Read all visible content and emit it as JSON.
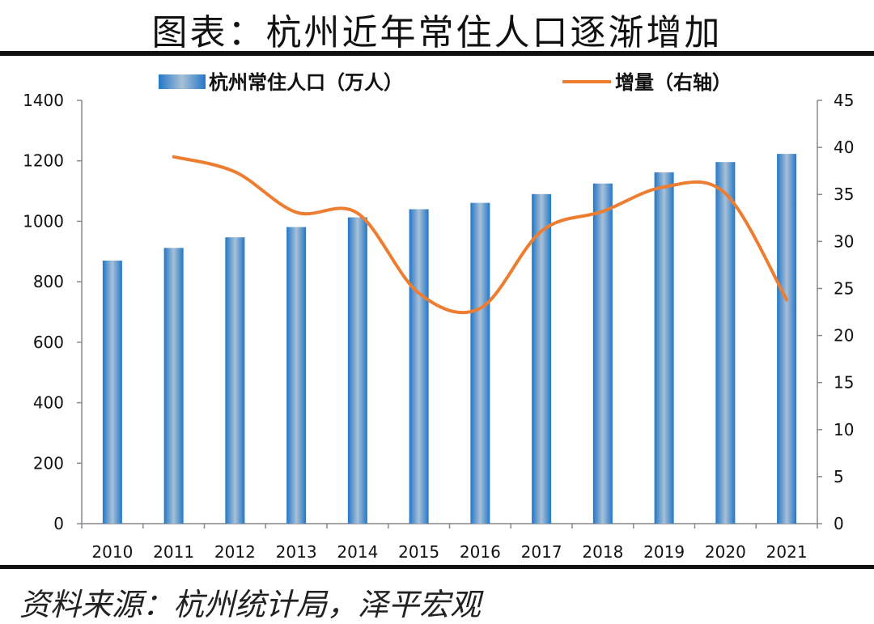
{
  "title": "图表：杭州近年常住人口逐渐增加",
  "source": "资料来源：杭州统计局，泽平宏观",
  "chart_data": {
    "type": "bar+line",
    "categories": [
      "2010",
      "2011",
      "2012",
      "2013",
      "2014",
      "2015",
      "2016",
      "2017",
      "2018",
      "2019",
      "2020",
      "2021"
    ],
    "series": [
      {
        "name": "杭州常住人口（万人）",
        "type": "bar",
        "axis": "left",
        "color": "#2f7fc4",
        "values": [
          870,
          912,
          947,
          981,
          1013,
          1040,
          1061,
          1090,
          1125,
          1162,
          1196,
          1223
        ]
      },
      {
        "name": "增量（右轴）",
        "type": "line",
        "axis": "right",
        "color": "#ed7d31",
        "smooth": true,
        "values": [
          null,
          39.0,
          37.4,
          33.1,
          33.0,
          24.5,
          22.9,
          31.1,
          33.2,
          35.8,
          35.1,
          23.8
        ]
      }
    ],
    "y_left": {
      "lim": [
        0,
        1400
      ],
      "ticks": [
        "0",
        "200",
        "400",
        "600",
        "800",
        "1000",
        "1200",
        "1400"
      ]
    },
    "y_right": {
      "lim": [
        0,
        45
      ],
      "ticks": [
        "0",
        "5",
        "10",
        "15",
        "20",
        "25",
        "30",
        "35",
        "40",
        "45"
      ]
    },
    "grid": false,
    "legend": "top"
  }
}
